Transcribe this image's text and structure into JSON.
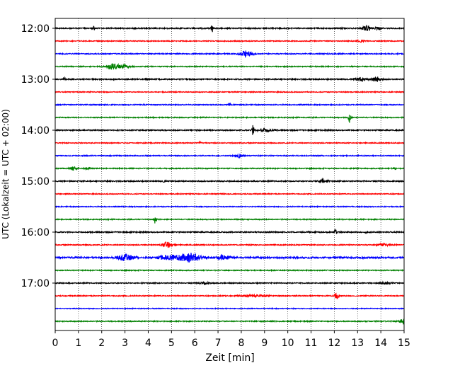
{
  "chart_data": {
    "type": "line",
    "title": "",
    "xlabel": "Zeit  [min]",
    "ylabel": "UTC (Lokalzeit = UTC + 02:00)",
    "xlim": [
      0,
      15
    ],
    "x_ticks": [
      "0",
      "1",
      "2",
      "3",
      "4",
      "5",
      "6",
      "7",
      "8",
      "9",
      "10",
      "11",
      "12",
      "13",
      "14",
      "15"
    ],
    "y_tick_labels": [
      "12:00",
      "13:00",
      "14:00",
      "15:00",
      "16:00",
      "17:00"
    ],
    "grid": "vertical dotted at each minute",
    "trace_interval_minutes": 15,
    "start_time": "12:00",
    "trace_colors": [
      "#000000",
      "#ff0000",
      "#0000ff",
      "#008000"
    ],
    "traces": [
      {
        "time": "12:00",
        "color": "#000000",
        "noise": 1.5,
        "events": [
          {
            "t": 1.65,
            "amp": 6,
            "w": 0.05
          },
          {
            "t": 6.75,
            "amp": 11,
            "w": 0.05
          },
          {
            "t": 13.4,
            "amp": 6,
            "w": 0.2
          },
          {
            "t": 13.9,
            "amp": 3,
            "w": 0.15
          }
        ]
      },
      {
        "time": "12:15",
        "color": "#ff0000",
        "noise": 1.2,
        "events": [
          {
            "t": 13.1,
            "amp": 3,
            "w": 0.2
          }
        ]
      },
      {
        "time": "12:30",
        "color": "#0000ff",
        "noise": 1.4,
        "events": [
          {
            "t": 8.2,
            "amp": 8,
            "w": 0.25
          }
        ]
      },
      {
        "time": "12:45",
        "color": "#008000",
        "noise": 1.3,
        "events": [
          {
            "t": 2.5,
            "amp": 8,
            "w": 0.3
          },
          {
            "t": 3.0,
            "amp": 4,
            "w": 0.2
          }
        ]
      },
      {
        "time": "13:00",
        "color": "#000000",
        "noise": 1.5,
        "events": [
          {
            "t": 0.4,
            "amp": 4,
            "w": 0.05
          },
          {
            "t": 13.1,
            "amp": 5,
            "w": 0.2
          },
          {
            "t": 13.8,
            "amp": 7,
            "w": 0.2
          }
        ]
      },
      {
        "time": "13:15",
        "color": "#ff0000",
        "noise": 1.2,
        "events": []
      },
      {
        "time": "13:30",
        "color": "#0000ff",
        "noise": 1.3,
        "events": [
          {
            "t": 7.5,
            "amp": 4,
            "w": 0.05
          }
        ]
      },
      {
        "time": "13:45",
        "color": "#008000",
        "noise": 1.3,
        "events": [
          {
            "t": 12.65,
            "amp": 18,
            "w": 0.05
          }
        ]
      },
      {
        "time": "14:00",
        "color": "#000000",
        "noise": 1.5,
        "events": [
          {
            "t": 8.5,
            "amp": 14,
            "w": 0.05
          },
          {
            "t": 9.0,
            "amp": 4,
            "w": 0.3
          }
        ]
      },
      {
        "time": "14:15",
        "color": "#ff0000",
        "noise": 1.2,
        "events": [
          {
            "t": 6.2,
            "amp": 4,
            "w": 0.05
          }
        ]
      },
      {
        "time": "14:30",
        "color": "#0000ff",
        "noise": 1.3,
        "events": [
          {
            "t": 7.9,
            "amp": 5,
            "w": 0.15
          }
        ]
      },
      {
        "time": "14:45",
        "color": "#008000",
        "noise": 1.3,
        "events": [
          {
            "t": 0.8,
            "amp": 5,
            "w": 0.15
          },
          {
            "t": 1.4,
            "amp": 3,
            "w": 0.1
          },
          {
            "t": 14.6,
            "amp": 4,
            "w": 0.05
          }
        ]
      },
      {
        "time": "15:00",
        "color": "#000000",
        "noise": 1.5,
        "events": [
          {
            "t": 4.7,
            "amp": 4,
            "w": 0.05
          },
          {
            "t": 11.5,
            "amp": 6,
            "w": 0.2
          }
        ]
      },
      {
        "time": "15:15",
        "color": "#ff0000",
        "noise": 1.2,
        "events": []
      },
      {
        "time": "15:30",
        "color": "#0000ff",
        "noise": 1.2,
        "events": []
      },
      {
        "time": "15:45",
        "color": "#008000",
        "noise": 1.3,
        "events": [
          {
            "t": 4.3,
            "amp": 13,
            "w": 0.05
          }
        ]
      },
      {
        "time": "16:00",
        "color": "#000000",
        "noise": 1.5,
        "events": [
          {
            "t": 12.05,
            "amp": 7,
            "w": 0.05
          },
          {
            "t": 13.4,
            "amp": 4,
            "w": 0.05
          }
        ]
      },
      {
        "time": "16:15",
        "color": "#ff0000",
        "noise": 1.3,
        "events": [
          {
            "t": 4.85,
            "amp": 9,
            "w": 0.2
          },
          {
            "t": 14.1,
            "amp": 3,
            "w": 0.3
          }
        ]
      },
      {
        "time": "16:30",
        "color": "#0000ff",
        "noise": 2.2,
        "events": [
          {
            "t": 3.0,
            "amp": 9,
            "w": 0.3
          },
          {
            "t": 4.9,
            "amp": 6,
            "w": 0.5
          },
          {
            "t": 5.8,
            "amp": 12,
            "w": 0.45
          },
          {
            "t": 7.2,
            "amp": 5,
            "w": 0.3
          }
        ]
      },
      {
        "time": "16:45",
        "color": "#008000",
        "noise": 1.2,
        "events": []
      },
      {
        "time": "17:00",
        "color": "#000000",
        "noise": 1.3,
        "events": [
          {
            "t": 6.4,
            "amp": 4,
            "w": 0.2
          },
          {
            "t": 14.2,
            "amp": 3,
            "w": 0.2
          }
        ]
      },
      {
        "time": "17:15",
        "color": "#ff0000",
        "noise": 1.3,
        "events": [
          {
            "t": 8.6,
            "amp": 3,
            "w": 0.5
          },
          {
            "t": 12.1,
            "amp": 7,
            "w": 0.1
          }
        ]
      },
      {
        "time": "17:30",
        "color": "#0000ff",
        "noise": 1.1,
        "events": []
      },
      {
        "time": "17:45",
        "color": "#008000",
        "noise": 1.3,
        "events": [
          {
            "t": 14.95,
            "amp": 8,
            "w": 0.15
          }
        ]
      }
    ]
  }
}
